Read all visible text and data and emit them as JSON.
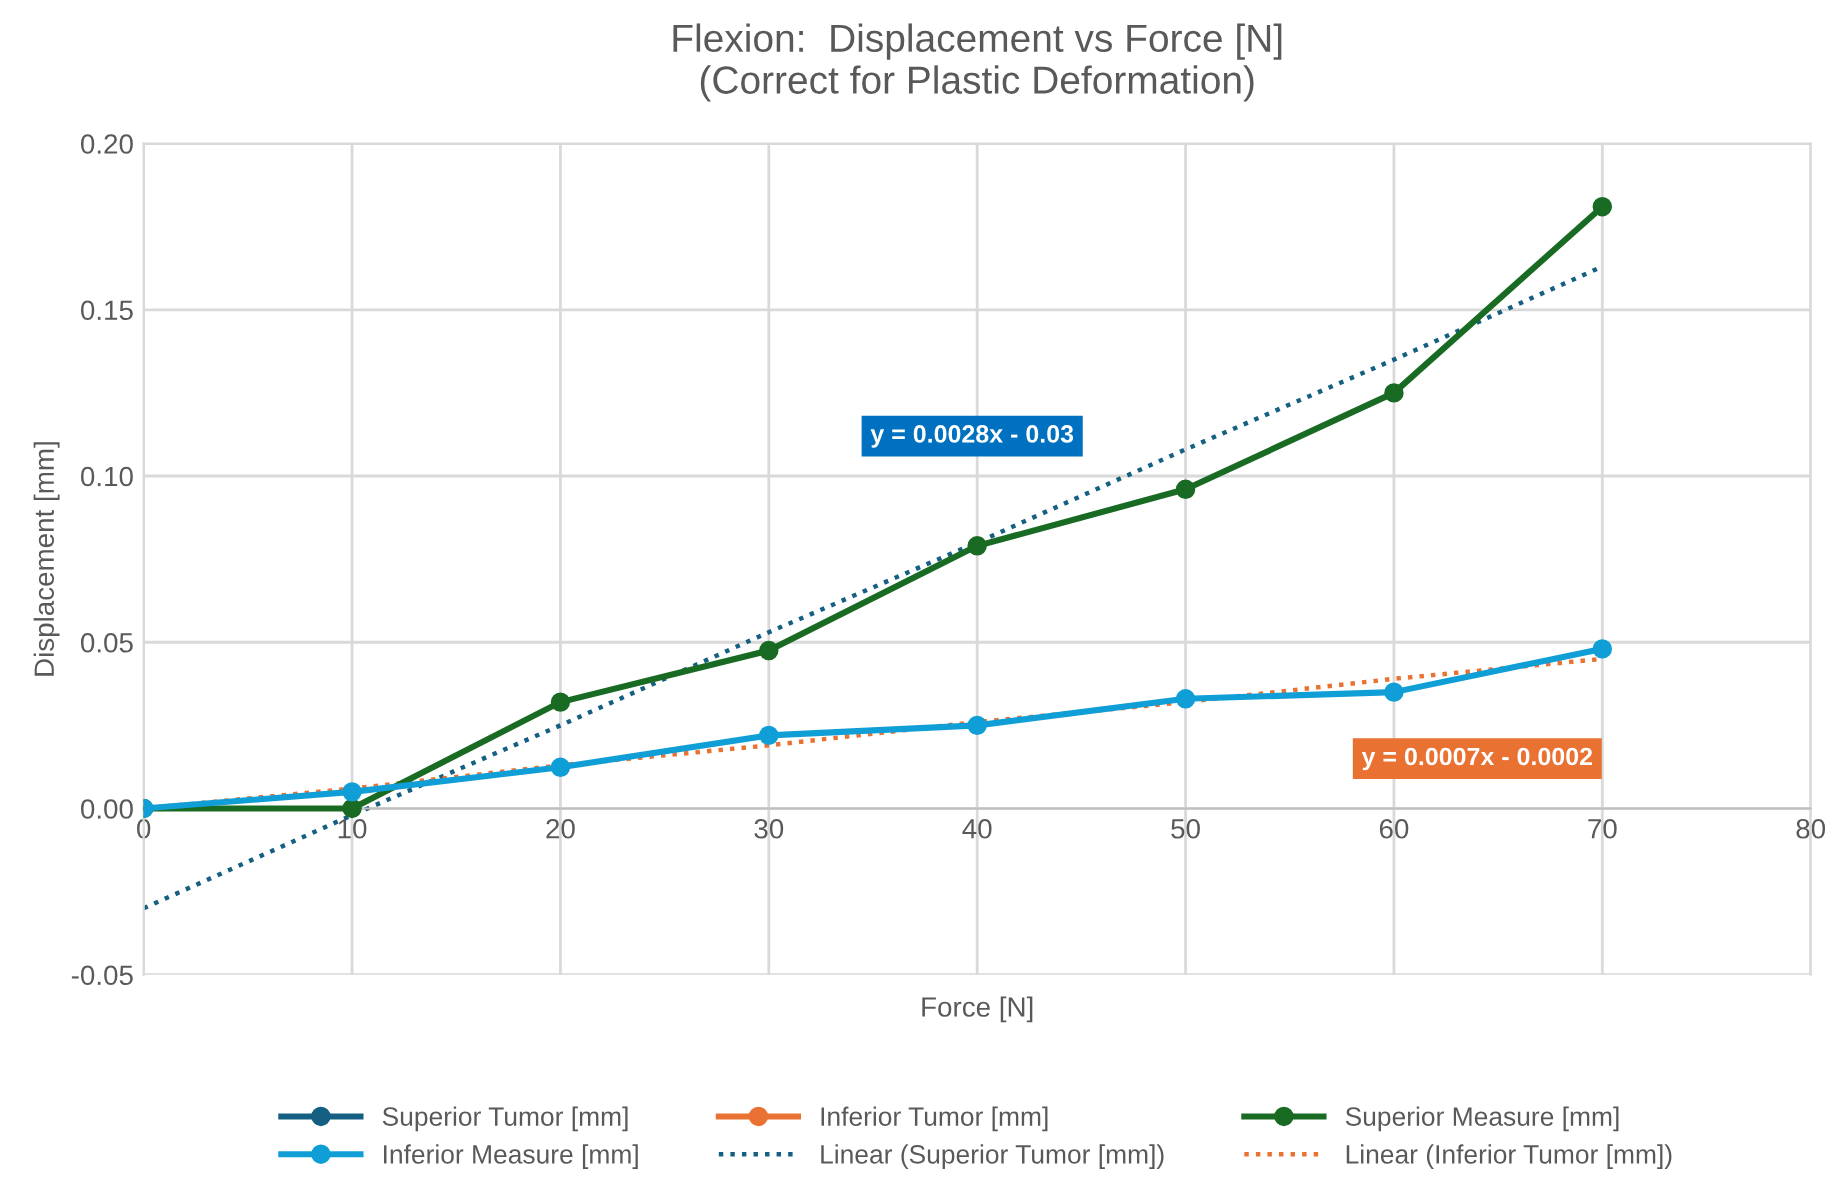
{
  "chart_data": {
    "type": "line",
    "title": "Flexion:  Displacement vs Force [N]\n(Correct for Plastic Deformation)",
    "xlabel": "Force [N]",
    "ylabel": "Displacement [mm]",
    "x": [
      0,
      10,
      20,
      30,
      40,
      50,
      60,
      70
    ],
    "series": [
      {
        "name": "Superior Tumor [mm]",
        "color": "#156082",
        "marker": "circle",
        "values": [
          null,
          null,
          null,
          null,
          null,
          null,
          null,
          null
        ]
      },
      {
        "name": "Inferior Tumor [mm]",
        "color": "#e97132",
        "marker": "circle",
        "values": [
          null,
          null,
          null,
          null,
          null,
          null,
          null,
          null
        ]
      },
      {
        "name": "Superior Measure [mm]",
        "color": "#196b24",
        "marker": "circle",
        "values": [
          0,
          0,
          0.032,
          0.0475,
          0.079,
          0.096,
          0.125,
          0.181
        ]
      },
      {
        "name": "Inferior Measure [mm]",
        "color": "#0f9ed5",
        "marker": "circle",
        "values": [
          0,
          0.005,
          0.0124,
          0.022,
          0.025,
          0.033,
          0.035,
          0.048
        ]
      },
      {
        "name": "Linear (Superior Tumor [mm])",
        "type": "line",
        "color": "#156082",
        "marker": "none",
        "line_style": "dotted",
        "values": [
          -0.03,
          -0.002,
          0.025,
          0.053,
          0.08,
          0.108,
          0.135,
          0.163
        ]
      },
      {
        "name": "Linear (Inferior Tumor [mm])",
        "type": "line",
        "color": "#e97132",
        "marker": "none",
        "line_style": "dotted",
        "values": [
          0.0,
          0.006,
          0.013,
          0.019,
          0.026,
          0.032,
          0.039,
          0.045
        ]
      }
    ],
    "annotations": [
      "y = 0.0028x - 0.03",
      "y = 0.0007x - 0.0002"
    ],
    "xlim": [
      0,
      80
    ],
    "xticks": [
      0,
      10,
      20,
      30,
      40,
      50,
      60,
      70,
      80
    ],
    "ylim": [
      -0.05,
      0.2
    ],
    "yticks": [
      {
        "value": -0.05,
        "label": "-0.05"
      },
      {
        "value": 0,
        "label": "0.00"
      },
      {
        "value": 0.05,
        "label": "0.05"
      },
      {
        "value": 0.1,
        "label": "0.10"
      },
      {
        "value": 0.15,
        "label": "0.15"
      },
      {
        "value": 0.2,
        "label": "0.20"
      }
    ],
    "grid": true,
    "legend": "bottom"
  }
}
